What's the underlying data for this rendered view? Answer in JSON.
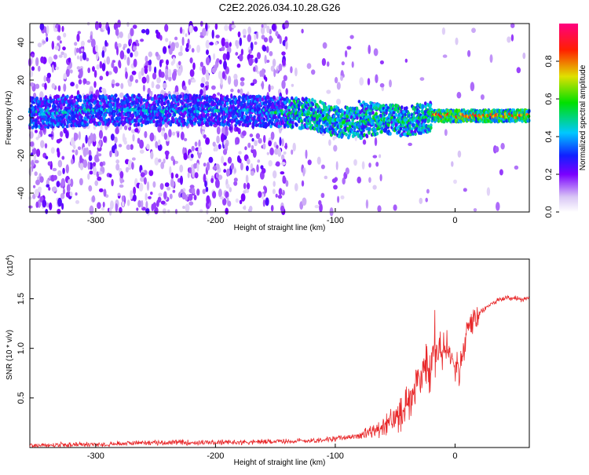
{
  "title": "C2E2.2026.034.10.28.G26",
  "chart_data": [
    {
      "type": "heatmap",
      "name": "spectrogram",
      "xlabel": "Height of straight line (km)",
      "ylabel": "Frequency (Hz)",
      "xlim": [
        -355,
        62
      ],
      "ylim": [
        -50,
        50
      ],
      "xticks": [
        -300,
        -200,
        -100,
        0
      ],
      "yticks": [
        -40,
        -20,
        0,
        20,
        40
      ],
      "colorbar": {
        "label": "Normalized spectral amplitude",
        "range": [
          0,
          1
        ],
        "ticks": [
          0.0,
          0.2,
          0.4,
          0.6,
          0.8
        ],
        "colormap": "rainbow (white-lavender → purple → blue → cyan → green → yellow → red → magenta)"
      },
      "ridge": [
        {
          "x": -340,
          "y": 3
        },
        {
          "x": -300,
          "y": 4
        },
        {
          "x": -260,
          "y": 4
        },
        {
          "x": -200,
          "y": 4
        },
        {
          "x": -150,
          "y": 3
        },
        {
          "x": -120,
          "y": 2
        },
        {
          "x": -100,
          "y": -2
        },
        {
          "x": -80,
          "y": -3
        },
        {
          "x": -60,
          "y": 0
        },
        {
          "x": -40,
          "y": -2
        },
        {
          "x": -20,
          "y": 1
        },
        {
          "x": 0,
          "y": 1
        },
        {
          "x": 30,
          "y": 1
        },
        {
          "x": 60,
          "y": 1
        }
      ]
    },
    {
      "type": "line",
      "name": "snr",
      "xlabel": "Height of straight line (km)",
      "ylabel": "SNR (10 * v/v)",
      "yscale_label": "(x10",
      "yscale_exp": "4",
      "xlim": [
        -355,
        62
      ],
      "ylim": [
        0,
        1.9
      ],
      "xticks": [
        -300,
        -200,
        -100,
        0
      ],
      "yticks": [
        0.5,
        1.0,
        1.5
      ],
      "color": "#e8282a",
      "series": [
        {
          "x": [
            -355,
            -300,
            -260,
            -250,
            -200,
            -150,
            -120,
            -100,
            -80,
            -60,
            -50,
            -40,
            -35,
            -30,
            -25,
            -20,
            -17,
            -15,
            -10,
            -5,
            0,
            5,
            10,
            20,
            30,
            40,
            50,
            62
          ],
          "y": [
            0.02,
            0.03,
            0.05,
            0.05,
            0.05,
            0.06,
            0.07,
            0.09,
            0.12,
            0.2,
            0.3,
            0.45,
            0.55,
            0.7,
            0.8,
            0.9,
            1.05,
            0.95,
            0.95,
            1.0,
            0.85,
            0.8,
            1.2,
            1.35,
            1.45,
            1.5,
            1.5,
            1.5
          ]
        }
      ]
    }
  ]
}
